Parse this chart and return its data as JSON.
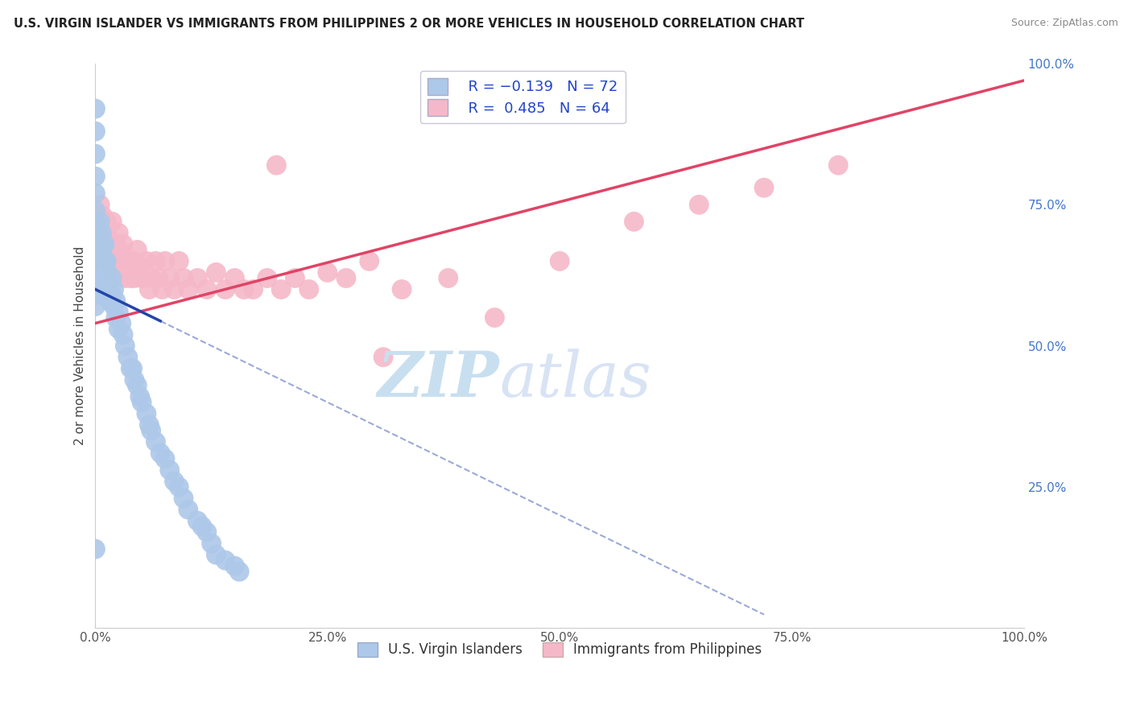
{
  "title": "U.S. VIRGIN ISLANDER VS IMMIGRANTS FROM PHILIPPINES 2 OR MORE VEHICLES IN HOUSEHOLD CORRELATION CHART",
  "source": "Source: ZipAtlas.com",
  "ylabel": "2 or more Vehicles in Household",
  "blue_R": -0.139,
  "blue_N": 72,
  "pink_R": 0.485,
  "pink_N": 64,
  "blue_label": "U.S. Virgin Islanders",
  "pink_label": "Immigrants from Philippines",
  "blue_color": "#adc8e8",
  "pink_color": "#f5b8c8",
  "blue_edge_color": "#adc8e8",
  "pink_edge_color": "#f5b8c8",
  "blue_line_color": "#2244aa",
  "pink_line_color": "#e04466",
  "legend_text_color": "#2244cc",
  "background_color": "#ffffff",
  "grid_color": "#dddddd",
  "grid_style": "--",
  "watermark_zip_color": "#c8dff0",
  "watermark_atlas_color": "#c8d8f0",
  "xlim": [
    0.0,
    1.0
  ],
  "ylim": [
    0.0,
    1.0
  ],
  "xticks": [
    0.0,
    0.25,
    0.5,
    0.75,
    1.0
  ],
  "xticklabels": [
    "0.0%",
    "25.0%",
    "50.0%",
    "75.0%",
    "100.0%"
  ],
  "yticks_right": [
    0.0,
    0.25,
    0.5,
    0.75,
    1.0
  ],
  "yticklabels_right": [
    "",
    "25.0%",
    "50.0%",
    "75.0%",
    "100.0%"
  ],
  "blue_x": [
    0.0,
    0.0,
    0.0,
    0.0,
    0.0,
    0.0,
    0.0,
    0.0,
    0.0,
    0.0,
    0.0,
    0.0,
    0.0,
    0.0,
    0.0,
    0.005,
    0.005,
    0.005,
    0.005,
    0.005,
    0.007,
    0.007,
    0.008,
    0.008,
    0.008,
    0.01,
    0.01,
    0.01,
    0.01,
    0.012,
    0.012,
    0.013,
    0.014,
    0.015,
    0.015,
    0.018,
    0.018,
    0.02,
    0.02,
    0.022,
    0.022,
    0.025,
    0.025,
    0.028,
    0.03,
    0.032,
    0.035,
    0.038,
    0.04,
    0.042,
    0.045,
    0.048,
    0.05,
    0.055,
    0.058,
    0.06,
    0.065,
    0.07,
    0.075,
    0.08,
    0.085,
    0.09,
    0.095,
    0.1,
    0.11,
    0.115,
    0.12,
    0.125,
    0.13,
    0.14,
    0.15,
    0.155
  ],
  "blue_y": [
    0.92,
    0.88,
    0.84,
    0.8,
    0.77,
    0.74,
    0.72,
    0.7,
    0.68,
    0.65,
    0.63,
    0.61,
    0.59,
    0.57,
    0.14,
    0.72,
    0.69,
    0.67,
    0.65,
    0.62,
    0.7,
    0.67,
    0.68,
    0.65,
    0.63,
    0.68,
    0.65,
    0.62,
    0.6,
    0.65,
    0.62,
    0.63,
    0.61,
    0.6,
    0.58,
    0.62,
    0.59,
    0.6,
    0.57,
    0.58,
    0.55,
    0.56,
    0.53,
    0.54,
    0.52,
    0.5,
    0.48,
    0.46,
    0.46,
    0.44,
    0.43,
    0.41,
    0.4,
    0.38,
    0.36,
    0.35,
    0.33,
    0.31,
    0.3,
    0.28,
    0.26,
    0.25,
    0.23,
    0.21,
    0.19,
    0.18,
    0.17,
    0.15,
    0.13,
    0.12,
    0.11,
    0.1
  ],
  "pink_x": [
    0.0,
    0.0,
    0.005,
    0.005,
    0.007,
    0.008,
    0.01,
    0.01,
    0.012,
    0.012,
    0.015,
    0.015,
    0.018,
    0.02,
    0.02,
    0.022,
    0.025,
    0.025,
    0.028,
    0.03,
    0.032,
    0.035,
    0.038,
    0.04,
    0.042,
    0.045,
    0.048,
    0.05,
    0.055,
    0.058,
    0.06,
    0.065,
    0.068,
    0.072,
    0.075,
    0.08,
    0.085,
    0.09,
    0.095,
    0.1,
    0.11,
    0.12,
    0.13,
    0.14,
    0.15,
    0.16,
    0.17,
    0.185,
    0.2,
    0.215,
    0.23,
    0.25,
    0.27,
    0.295,
    0.33,
    0.38,
    0.43,
    0.5,
    0.58,
    0.65,
    0.72,
    0.8,
    0.31,
    0.195
  ],
  "pink_y": [
    0.68,
    0.65,
    0.75,
    0.72,
    0.7,
    0.73,
    0.68,
    0.65,
    0.72,
    0.7,
    0.68,
    0.65,
    0.72,
    0.65,
    0.62,
    0.68,
    0.7,
    0.67,
    0.65,
    0.68,
    0.62,
    0.65,
    0.62,
    0.65,
    0.62,
    0.67,
    0.64,
    0.62,
    0.65,
    0.6,
    0.62,
    0.65,
    0.62,
    0.6,
    0.65,
    0.62,
    0.6,
    0.65,
    0.62,
    0.6,
    0.62,
    0.6,
    0.63,
    0.6,
    0.62,
    0.6,
    0.6,
    0.62,
    0.6,
    0.62,
    0.6,
    0.63,
    0.62,
    0.65,
    0.6,
    0.62,
    0.55,
    0.65,
    0.72,
    0.75,
    0.78,
    0.82,
    0.48,
    0.82
  ],
  "blue_line_x0": 0.0,
  "blue_line_x_solid_end": 0.07,
  "blue_line_x_dash_end": 0.72,
  "blue_line_y_start": 0.6,
  "blue_line_slope": -0.8,
  "pink_line_x0": 0.0,
  "pink_line_x1": 1.0,
  "pink_line_y0": 0.54,
  "pink_line_y1": 0.97
}
